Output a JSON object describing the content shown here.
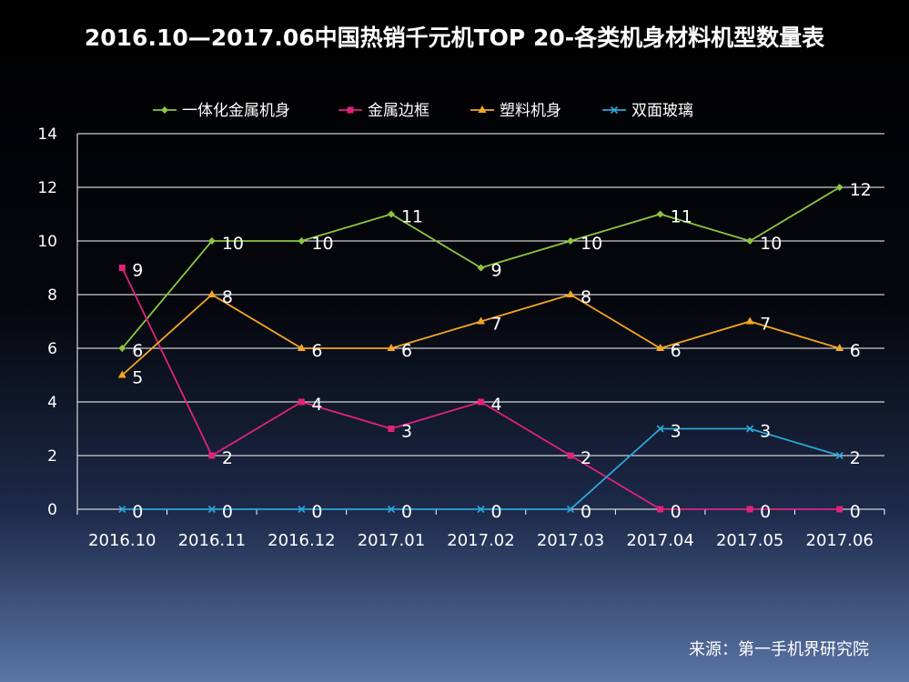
{
  "chart_data": {
    "type": "line",
    "title": "2016.10—2017.06中国热销千元机TOP 20-各类机身材料机型数量表",
    "categories": [
      "2016.10",
      "2016.11",
      "2016.12",
      "2017.01",
      "2017.02",
      "2017.03",
      "2017.04",
      "2017.05",
      "2017.06"
    ],
    "series": [
      {
        "name": "一体化金属机身",
        "values": [
          6,
          10,
          10,
          11,
          9,
          10,
          11,
          10,
          12
        ],
        "color": "#8cc63f",
        "marker": "diamond"
      },
      {
        "name": "金属边框",
        "values": [
          9,
          2,
          4,
          3,
          4,
          2,
          0,
          0,
          0
        ],
        "color": "#e0237a",
        "marker": "square"
      },
      {
        "name": "塑料机身",
        "values": [
          5,
          8,
          6,
          6,
          7,
          8,
          6,
          7,
          6
        ],
        "color": "#f5a623",
        "marker": "triangle"
      },
      {
        "name": "双面玻璃",
        "values": [
          0,
          0,
          0,
          0,
          0,
          0,
          3,
          3,
          2
        ],
        "color": "#2ca6d9",
        "marker": "x"
      }
    ],
    "ylim": [
      0,
      14
    ],
    "yticks": [
      0,
      2,
      4,
      6,
      8,
      10,
      12,
      14
    ],
    "grid": true,
    "legend": "top",
    "xlabel": "",
    "ylabel": ""
  },
  "source": "来源：第一手机界研究院"
}
